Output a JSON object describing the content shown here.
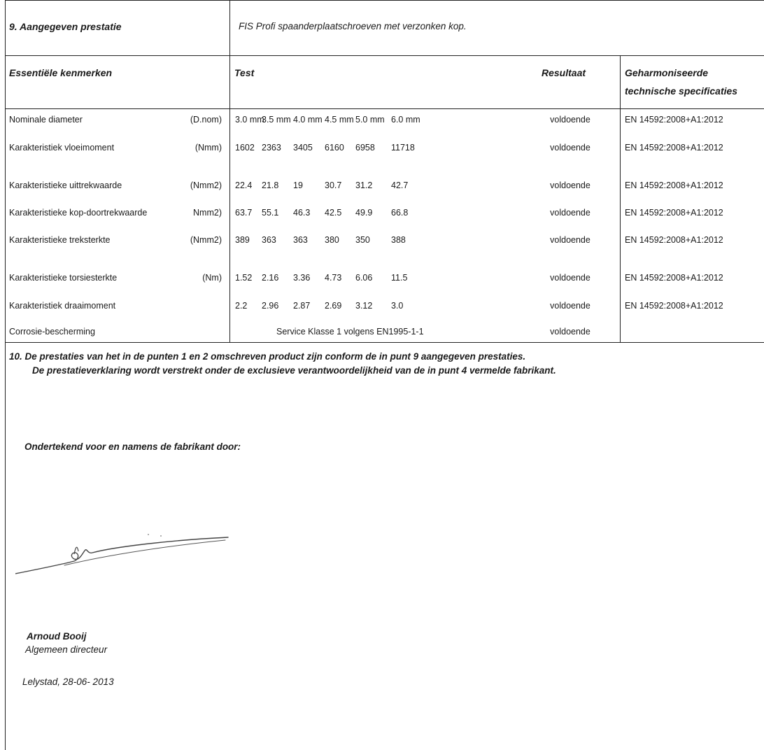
{
  "header": {
    "section_label": "9. Aangegeven prestatie",
    "product_description": "FIS Profi spaanderplaatschroeven met  verzonken kop."
  },
  "columns": {
    "characteristics": "Essentiële kenmerken",
    "test": "Test",
    "result": "Resultaat",
    "spec_line1": "Geharmoniseerde",
    "spec_line2": "technische specificaties"
  },
  "rows": [
    {
      "name": "Nominale diameter",
      "unit": "(D.nom)",
      "values": [
        "3.0 mm",
        "3.5 mm",
        "4.0 mm",
        "4.5 mm",
        "5.0 mm",
        "6.0 mm"
      ],
      "result": "voldoende",
      "spec": "EN 14592:2008+A1:2012"
    },
    {
      "name": "Karakteristiek vloeimoment",
      "unit": "(Nmm)",
      "values": [
        "1602",
        "2363",
        "3405",
        "6160",
        "6958",
        "11718"
      ],
      "result": "voldoende",
      "spec": "EN 14592:2008+A1:2012"
    },
    {
      "name": "Karakteristieke uittrekwaarde",
      "unit": "(Nmm2)",
      "values": [
        "22.4",
        "21.8",
        "19",
        "30.7",
        "31.2",
        "42.7"
      ],
      "result": "voldoende",
      "spec": "EN 14592:2008+A1:2012"
    },
    {
      "name": "Karakteristieke kop-doortrekwaarde",
      "unit": "Nmm2)",
      "values": [
        "63.7",
        "55.1",
        "46.3",
        "42.5",
        "49.9",
        "66.8"
      ],
      "result": "voldoende",
      "spec": "EN 14592:2008+A1:2012"
    },
    {
      "name": "Karakteristieke treksterkte",
      "unit": "(Nmm2)",
      "values": [
        "389",
        "363",
        "363",
        "380",
        "350",
        "388"
      ],
      "result": "voldoende",
      "spec": "EN 14592:2008+A1:2012"
    },
    {
      "name": "Karakteristieke torsiesterkte",
      "unit": "(Nm)",
      "values": [
        "1.52",
        "2.16",
        "3.36",
        "4.73",
        "6.06",
        "11.5"
      ],
      "result": "voldoende",
      "spec": "EN 14592:2008+A1:2012"
    },
    {
      "name": "Karakteristiek draaimoment",
      "unit": "",
      "values": [
        "2.2",
        "2.96",
        "2.87",
        "2.69",
        "3.12",
        "3.0"
      ],
      "result": "voldoende",
      "spec": "EN 14592:2008+A1:2012"
    }
  ],
  "corrosion": {
    "name": "Corrosie-bescherming",
    "test": "Service Klasse 1 volgens EN1995-1-1",
    "result": "voldoende"
  },
  "footer": {
    "statement_line1": "10.  De prestaties van het in de punten 1 en 2 omschreven product zijn conform de in punt 9 aangegeven prestaties.",
    "statement_line2": "De prestatieverklaring wordt verstrekt onder de exclusieve verantwoordelijkheid van de in punt 4 vermelde fabrikant.",
    "signed_by_label": "Ondertekend voor en namens de fabrikant door:",
    "signatory_name": "Arnoud Booij",
    "signatory_title": "Algemeen directeur",
    "place_date": "Lelystad, 28-06- 2013"
  }
}
